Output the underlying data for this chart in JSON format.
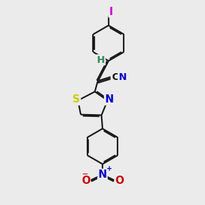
{
  "bg_color": "#ebebeb",
  "bond_color": "#1a1a1a",
  "bond_width": 1.6,
  "dbo": 0.06,
  "atom_colors": {
    "I": "#cc00cc",
    "N": "#0000cc",
    "S": "#cccc00",
    "O": "#cc0000",
    "H": "#2e8b57",
    "C": "#1a1a1a"
  },
  "font_size": 10
}
